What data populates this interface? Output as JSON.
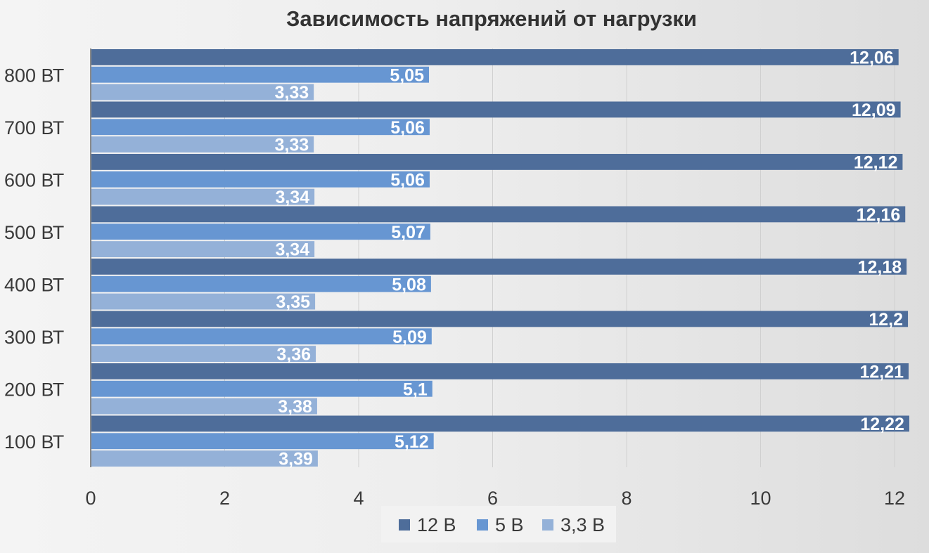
{
  "chart_data": {
    "type": "bar",
    "orientation": "horizontal",
    "title": "Зависимость напряжений от нагрузки",
    "xlabel": "",
    "ylabel": "",
    "categories": [
      "800 ВТ",
      "700 ВТ",
      "600 ВТ",
      "500 ВТ",
      "400 ВТ",
      "300 ВТ",
      "200 ВТ",
      "100 ВТ"
    ],
    "series": [
      {
        "name": "12 В",
        "color": "#4e6d9a",
        "values": [
          12.06,
          12.09,
          12.12,
          12.16,
          12.18,
          12.2,
          12.21,
          12.22
        ],
        "labels": [
          "12,06",
          "12,09",
          "12,12",
          "12,16",
          "12,18",
          "12,2",
          "12,21",
          "12,22"
        ]
      },
      {
        "name": "5 В",
        "color": "#6796d2",
        "values": [
          5.05,
          5.06,
          5.06,
          5.07,
          5.08,
          5.09,
          5.1,
          5.12
        ],
        "labels": [
          "5,05",
          "5,06",
          "5,06",
          "5,07",
          "5,08",
          "5,09",
          "5,1",
          "5,12"
        ]
      },
      {
        "name": "3,3 В",
        "color": "#94b1d8",
        "values": [
          3.33,
          3.33,
          3.34,
          3.34,
          3.35,
          3.36,
          3.38,
          3.39
        ],
        "labels": [
          "3,33",
          "3,33",
          "3,34",
          "3,34",
          "3,35",
          "3,36",
          "3,38",
          "3,39"
        ]
      }
    ],
    "xlim": [
      0,
      12
    ],
    "xticks": [
      0,
      2,
      4,
      6,
      8,
      10,
      12
    ],
    "xtick_labels": [
      "0",
      "2",
      "4",
      "6",
      "8",
      "10",
      "12"
    ],
    "grid": "vertical",
    "legend_position": "bottom"
  }
}
